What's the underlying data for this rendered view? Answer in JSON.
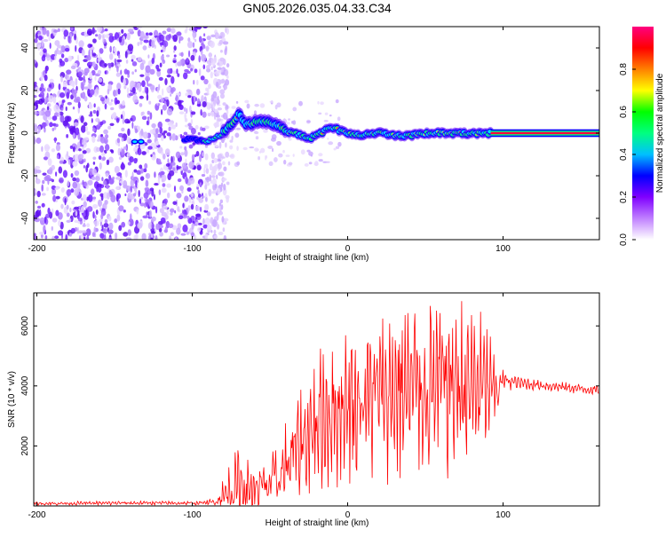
{
  "chart_data": [
    {
      "type": "heatmap",
      "title": "GN05.2026.035.04.33.C34",
      "xlabel": "Height of straight line (km)",
      "ylabel": "Frequency (Hz)",
      "xlim": [
        -202,
        162
      ],
      "ylim": [
        -50,
        50
      ],
      "xticks": [
        -200,
        -100,
        0,
        100
      ],
      "yticks": [
        -40,
        -20,
        0,
        20,
        40
      ],
      "ridge": {
        "x": [
          -135,
          -125,
          -110,
          -100,
          -92,
          -88,
          -82,
          -78,
          -74,
          -70,
          -66,
          -60,
          -55,
          -50,
          -45,
          -40,
          -35,
          -30,
          -25,
          -20,
          -15,
          -10,
          -5,
          0,
          10,
          20,
          30,
          40,
          50,
          60,
          70,
          80,
          90,
          100,
          120,
          140,
          160
        ],
        "freq": [
          -4,
          -4,
          -3,
          -3,
          -4,
          -3,
          -1,
          2,
          5,
          9,
          4,
          5,
          6,
          5,
          4,
          1,
          0,
          -1,
          -3,
          -1,
          1,
          3,
          1,
          0,
          -1,
          0,
          -1,
          -1,
          0,
          0,
          0,
          0,
          0,
          0,
          0,
          0,
          0
        ]
      },
      "noise_region_x": [
        -202,
        -85
      ],
      "colorbar": {
        "label": "Normalized spectral amplitude",
        "range": [
          0,
          1
        ],
        "ticks": [
          "0.0",
          "0.2",
          "0.4",
          "0.6",
          "0.8"
        ],
        "stops": [
          "#ffffff",
          "#c080ff",
          "#8000ff",
          "#0000ff",
          "#00c0ff",
          "#00ff80",
          "#00ff00",
          "#ffff00",
          "#ff8000",
          "#ff0000",
          "#ff0080"
        ]
      }
    },
    {
      "type": "line",
      "xlabel": "Height of straight line (km)",
      "ylabel": "SNR (10 * v/v)",
      "xlim": [
        -202,
        162
      ],
      "ylim": [
        0,
        7100
      ],
      "xticks": [
        -200,
        -100,
        0,
        100
      ],
      "yticks": [
        2000,
        4000,
        6000
      ],
      "color": "#ff0000",
      "envelope": {
        "x": [
          -202,
          -130,
          -100,
          -85,
          -78,
          -74,
          -70,
          -65,
          -60,
          -55,
          -50,
          -45,
          -40,
          -35,
          -30,
          -25,
          -20,
          -15,
          -10,
          -5,
          0,
          10,
          20,
          30,
          40,
          50,
          60,
          70,
          80,
          90,
          95,
          100,
          110,
          120,
          140,
          162
        ],
        "mean": [
          80,
          100,
          90,
          130,
          400,
          600,
          700,
          550,
          500,
          650,
          700,
          900,
          1300,
          1700,
          2100,
          2400,
          2800,
          3000,
          3100,
          3300,
          3400,
          3600,
          3700,
          3800,
          3900,
          3950,
          4000,
          4000,
          3950,
          3900,
          3800,
          4200,
          4100,
          4050,
          3950,
          3850
        ],
        "amplitude": [
          60,
          60,
          60,
          100,
          700,
          900,
          1100,
          900,
          700,
          900,
          1000,
          1100,
          1300,
          1500,
          1800,
          2000,
          2200,
          2300,
          2300,
          2300,
          2400,
          2500,
          2600,
          2700,
          2800,
          2800,
          2800,
          2700,
          2500,
          2000,
          1200,
          300,
          200,
          180,
          150,
          150
        ]
      }
    }
  ]
}
